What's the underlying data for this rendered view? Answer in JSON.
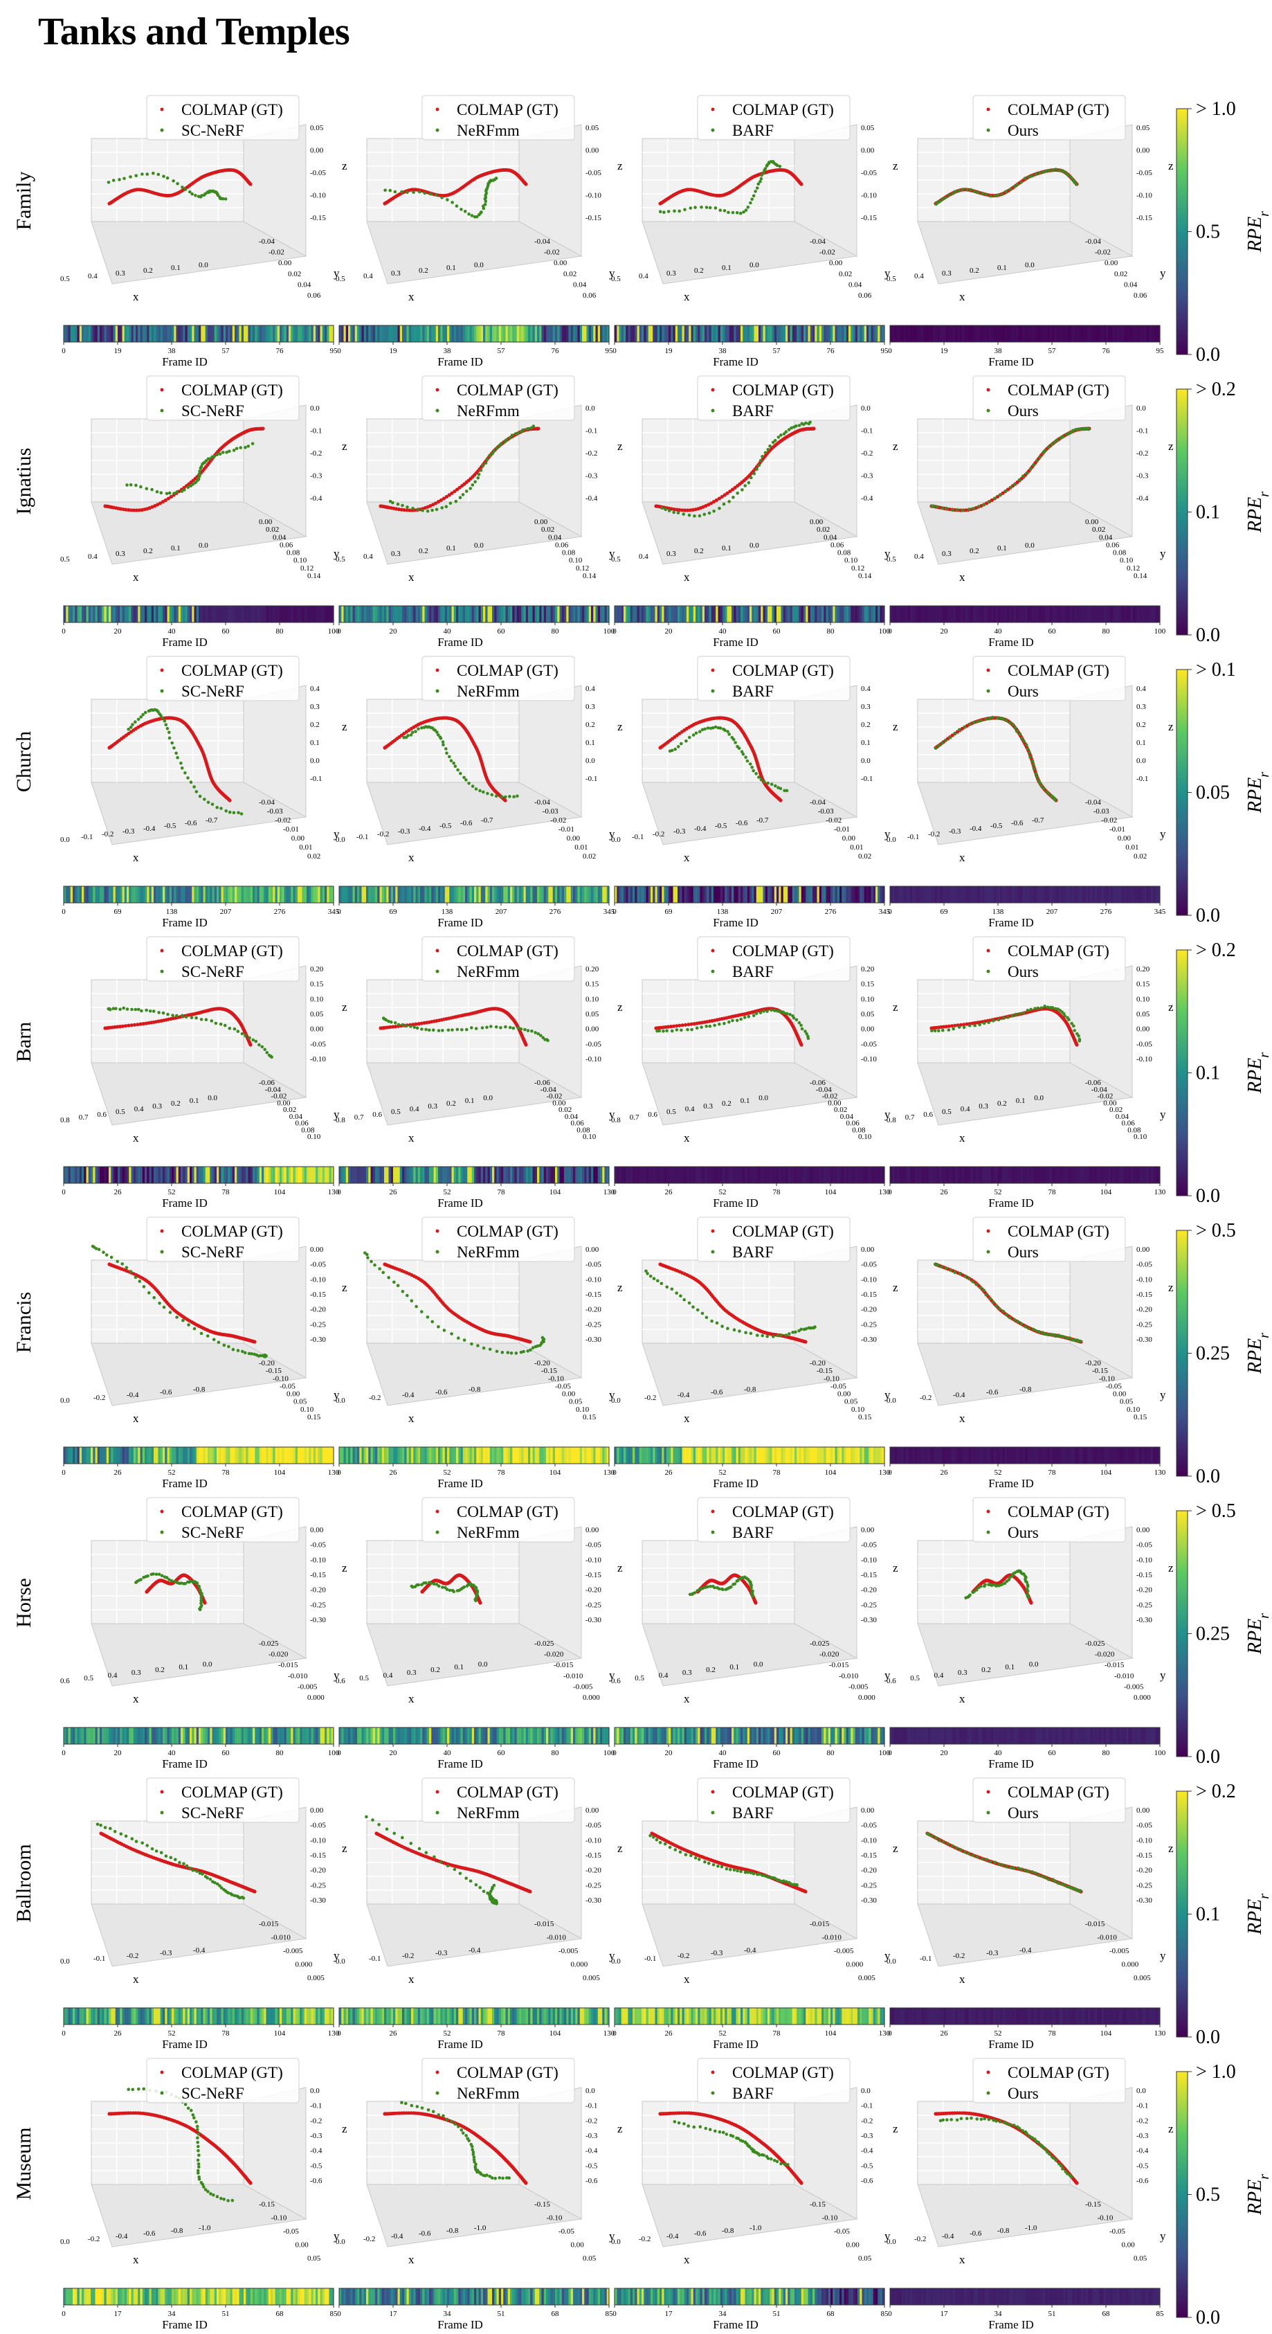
{
  "page": {
    "title": "Tanks and Temples"
  },
  "labels": {
    "frame_axis": "Frame ID",
    "x_axis": "x",
    "y_axis": "y",
    "z_axis": "z",
    "colorbar_label": "RPE",
    "colorbar_label_sub": "r"
  },
  "colors": {
    "gt_trajectory": "#d7191c",
    "method_trajectory": "#3a8a1f",
    "viridis": [
      "#440154",
      "#3b528b",
      "#21918c",
      "#5ec962",
      "#fde725"
    ]
  },
  "methods": [
    "SC-NeRF",
    "NeRFmm",
    "BARF",
    "Ours"
  ],
  "gt_legend": "COLMAP (GT)",
  "chart_data": {
    "type": "trajectory-3d-with-error-strip",
    "title": "Tanks and Temples",
    "rows": [
      {
        "scene": "Family",
        "colorbar_max": "> 1.0",
        "colorbar_mid": "0.5",
        "colorbar_min": "0.0",
        "frame_ticks": [
          "0",
          "19",
          "38",
          "57",
          "76",
          "95"
        ],
        "x_ticks": [
          "0.5",
          "0.4",
          "0.3",
          "0.2",
          "0.1",
          "0.0"
        ],
        "z_ticks": [
          "0.05",
          "0.00",
          "-0.05",
          "-0.10",
          "-0.15"
        ],
        "y_ticks": [
          "-0.04",
          "-0.02",
          "0.00",
          "0.02",
          "0.04",
          "0.06"
        ],
        "strip_levels": [
          [
            0.3,
            0.28,
            0.35,
            0.4
          ],
          [
            0.3,
            0.5,
            0.65,
            0.3
          ],
          [
            0.3,
            0.32,
            0.36,
            0.34
          ],
          [
            0.02,
            0.02,
            0.02,
            0.02
          ]
        ],
        "alignment": [
          0.35,
          0.4,
          0.3,
          0.0
        ]
      },
      {
        "scene": "Ignatius",
        "colorbar_max": "> 0.2",
        "colorbar_mid": "0.1",
        "colorbar_min": "0.0",
        "frame_ticks": [
          "0",
          "20",
          "40",
          "60",
          "80",
          "100"
        ],
        "x_ticks": [
          "0.5",
          "0.4",
          "0.3",
          "0.2",
          "0.1",
          "0.0"
        ],
        "z_ticks": [
          "0.0",
          "-0.1",
          "-0.2",
          "-0.3",
          "-0.4"
        ],
        "y_ticks": [
          "0.00",
          "0.02",
          "0.04",
          "0.06",
          "0.08",
          "0.10",
          "0.12",
          "0.14"
        ],
        "strip_levels": [
          [
            0.45,
            0.3,
            0.1,
            0.05
          ],
          [
            0.4,
            0.3,
            0.3,
            0.3
          ],
          [
            0.35,
            0.3,
            0.3,
            0.25
          ],
          [
            0.05,
            0.05,
            0.05,
            0.05
          ]
        ],
        "alignment": [
          0.35,
          0.15,
          0.1,
          0.0
        ]
      },
      {
        "scene": "Church",
        "colorbar_max": "> 0.1",
        "colorbar_mid": "0.05",
        "colorbar_min": "0.0",
        "frame_ticks": [
          "0",
          "69",
          "138",
          "207",
          "276",
          "345"
        ],
        "x_ticks": [
          "0.0",
          "-0.1",
          "-0.2",
          "-0.3",
          "-0.4",
          "-0.5",
          "-0.6",
          "-0.7"
        ],
        "z_ticks": [
          "0.4",
          "0.3",
          "0.2",
          "0.1",
          "0.0",
          "-0.1"
        ],
        "y_ticks": [
          "-0.04",
          "-0.03",
          "-0.02",
          "-0.01",
          "0.00",
          "0.01",
          "0.02"
        ],
        "strip_levels": [
          [
            0.45,
            0.5,
            0.6,
            0.55
          ],
          [
            0.5,
            0.5,
            0.55,
            0.5
          ],
          [
            0.2,
            0.15,
            0.2,
            0.15
          ],
          [
            0.1,
            0.1,
            0.1,
            0.1
          ]
        ],
        "alignment": [
          0.3,
          0.3,
          0.15,
          0.0
        ]
      },
      {
        "scene": "Barn",
        "colorbar_max": "> 0.2",
        "colorbar_mid": "0.1",
        "colorbar_min": "0.0",
        "frame_ticks": [
          "0",
          "26",
          "52",
          "78",
          "104",
          "130"
        ],
        "x_ticks": [
          "0.8",
          "0.7",
          "0.6",
          "0.5",
          "0.4",
          "0.3",
          "0.2",
          "0.1",
          "0.0"
        ],
        "z_ticks": [
          "0.20",
          "0.15",
          "0.10",
          "0.05",
          "0.00",
          "-0.05",
          "-0.10"
        ],
        "y_ticks": [
          "-0.06",
          "-0.04",
          "-0.02",
          "0.00",
          "0.02",
          "0.04",
          "0.06",
          "0.08",
          "0.10"
        ],
        "strip_levels": [
          [
            0.2,
            0.2,
            0.3,
            0.85
          ],
          [
            0.3,
            0.5,
            0.3,
            0.2
          ],
          [
            0.05,
            0.05,
            0.05,
            0.05
          ],
          [
            0.05,
            0.05,
            0.05,
            0.05
          ]
        ],
        "alignment": [
          0.3,
          0.3,
          0.1,
          0.05
        ]
      },
      {
        "scene": "Francis",
        "colorbar_max": "> 0.5",
        "colorbar_mid": "0.25",
        "colorbar_min": "0.0",
        "frame_ticks": [
          "0",
          "26",
          "52",
          "78",
          "104",
          "130"
        ],
        "x_ticks": [
          "0.0",
          "-0.2",
          "-0.4",
          "-0.6",
          "-0.8"
        ],
        "z_ticks": [
          "0.00",
          "-0.05",
          "-0.10",
          "-0.15",
          "-0.20",
          "-0.25",
          "-0.30"
        ],
        "y_ticks": [
          "-0.20",
          "-0.15",
          "-0.10",
          "-0.05",
          "0.00",
          "0.05",
          "0.10",
          "0.15"
        ],
        "strip_levels": [
          [
            0.4,
            0.6,
            0.95,
            0.98
          ],
          [
            0.6,
            0.75,
            0.9,
            0.95
          ],
          [
            0.6,
            0.9,
            0.97,
            0.98
          ],
          [
            0.05,
            0.05,
            0.05,
            0.05
          ]
        ],
        "alignment": [
          0.3,
          0.35,
          0.25,
          0.0
        ]
      },
      {
        "scene": "Horse",
        "colorbar_max": "> 0.5",
        "colorbar_mid": "0.25",
        "colorbar_min": "0.0",
        "frame_ticks": [
          "0",
          "20",
          "40",
          "60",
          "80",
          "100"
        ],
        "x_ticks": [
          "0.6",
          "0.5",
          "0.4",
          "0.3",
          "0.2",
          "0.1",
          "0.0"
        ],
        "z_ticks": [
          "0.00",
          "-0.05",
          "-0.10",
          "-0.15",
          "-0.20",
          "-0.25",
          "-0.30"
        ],
        "y_ticks": [
          "-0.025",
          "-0.020",
          "-0.015",
          "-0.010",
          "-0.005",
          "0.000"
        ],
        "strip_levels": [
          [
            0.55,
            0.5,
            0.55,
            0.5
          ],
          [
            0.55,
            0.5,
            0.5,
            0.55
          ],
          [
            0.5,
            0.45,
            0.4,
            0.45
          ],
          [
            0.1,
            0.1,
            0.1,
            0.1
          ]
        ],
        "alignment": [
          0.15,
          0.15,
          0.1,
          0.1
        ]
      },
      {
        "scene": "Ballroom",
        "colorbar_max": "> 0.2",
        "colorbar_mid": "0.1",
        "colorbar_min": "0.0",
        "frame_ticks": [
          "0",
          "26",
          "52",
          "78",
          "104",
          "130"
        ],
        "x_ticks": [
          "0.0",
          "-0.1",
          "-0.2",
          "-0.3",
          "-0.4"
        ],
        "z_ticks": [
          "0.00",
          "-0.05",
          "-0.10",
          "-0.15",
          "-0.20",
          "-0.25",
          "-0.30"
        ],
        "y_ticks": [
          "-0.015",
          "-0.010",
          "-0.005",
          "0.000",
          "0.005"
        ],
        "strip_levels": [
          [
            0.55,
            0.55,
            0.6,
            0.7
          ],
          [
            0.6,
            0.55,
            0.6,
            0.6
          ],
          [
            0.75,
            0.7,
            0.75,
            0.75
          ],
          [
            0.08,
            0.08,
            0.08,
            0.08
          ]
        ],
        "alignment": [
          0.15,
          0.5,
          0.1,
          0.0
        ]
      },
      {
        "scene": "Museum",
        "colorbar_max": "> 1.0",
        "colorbar_mid": "0.5",
        "colorbar_min": "0.0",
        "frame_ticks": [
          "0",
          "17",
          "34",
          "51",
          "68",
          "85"
        ],
        "x_ticks": [
          "0.0",
          "-0.2",
          "-0.4",
          "-0.6",
          "-0.8",
          "-1.0"
        ],
        "z_ticks": [
          "0.0",
          "-0.1",
          "-0.2",
          "-0.3",
          "-0.4",
          "-0.5",
          "-0.6"
        ],
        "y_ticks": [
          "-0.15",
          "-0.10",
          "-0.05",
          "0.00",
          "0.05"
        ],
        "strip_levels": [
          [
            0.8,
            0.75,
            0.8,
            0.8
          ],
          [
            0.4,
            0.45,
            0.4,
            0.45
          ],
          [
            0.55,
            0.45,
            0.6,
            0.2
          ],
          [
            0.1,
            0.1,
            0.1,
            0.1
          ]
        ],
        "alignment": [
          0.4,
          0.35,
          0.3,
          0.1
        ]
      }
    ]
  }
}
